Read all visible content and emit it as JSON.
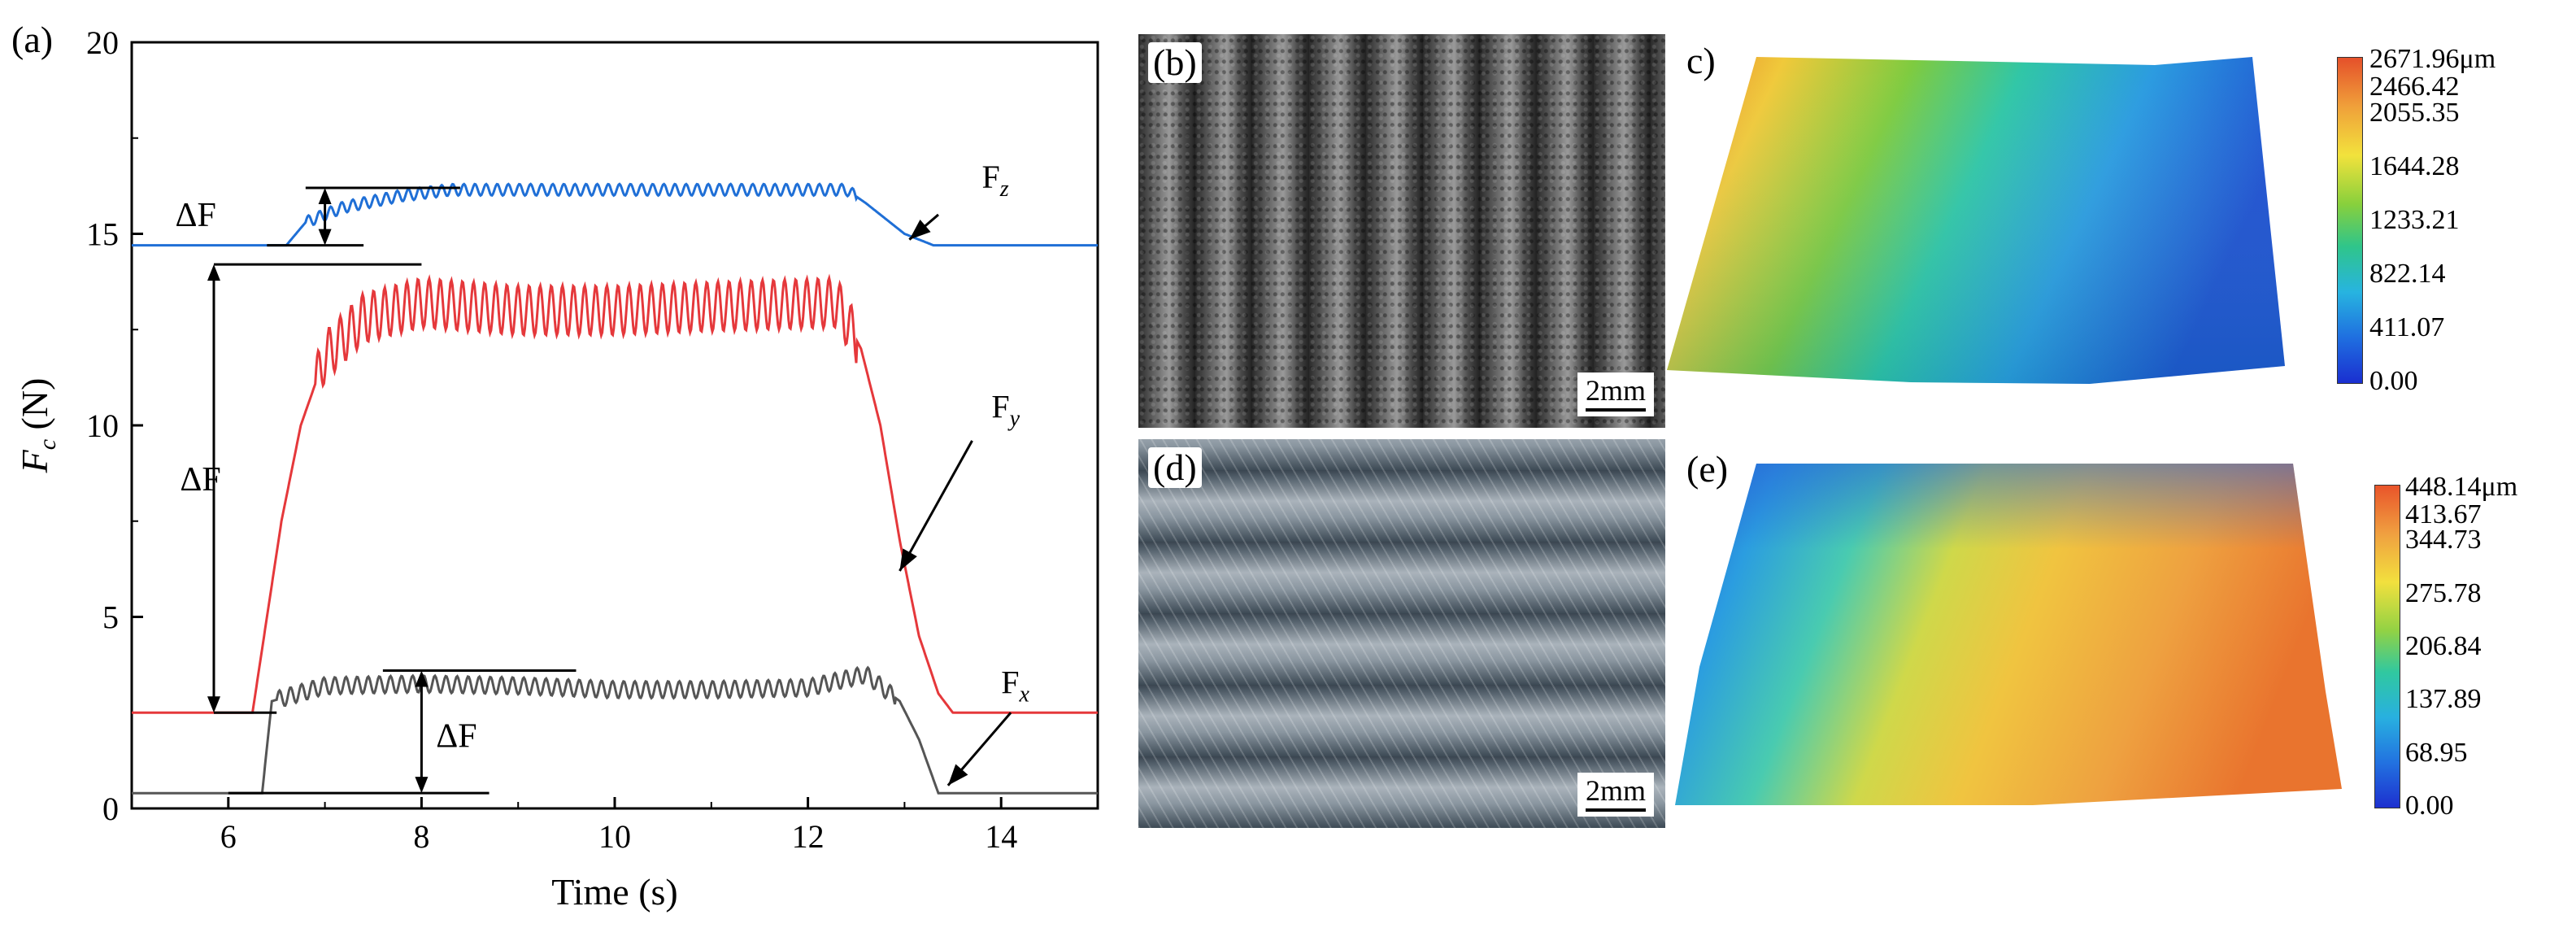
{
  "panel_labels": {
    "a": "(a)",
    "b": "(b)",
    "c": "c)",
    "d": "(d)",
    "e": "(e)"
  },
  "scale_bars": {
    "b": "2mm",
    "d": "2mm"
  },
  "colorbar_c": {
    "ticks": [
      "2671.96μm",
      "2466.42",
      "2055.35",
      "1644.28",
      "1233.21",
      "822.14",
      "411.07",
      "0.00"
    ]
  },
  "colorbar_e": {
    "ticks": [
      "448.14μm",
      "413.67",
      "344.73",
      "275.78",
      "206.84",
      "137.89",
      "68.95",
      "0.00"
    ]
  },
  "chart_data": {
    "type": "line",
    "title": "",
    "xlabel": "Time (s)",
    "ylabel": "F_c (N)",
    "xlim": [
      5,
      15
    ],
    "ylim": [
      0,
      20
    ],
    "xticks": [
      6,
      8,
      10,
      12,
      14
    ],
    "yticks": [
      0,
      5,
      10,
      15,
      20
    ],
    "series": [
      {
        "name": "Fz",
        "label_main": "F",
        "label_sub": "z",
        "color": "#1f6fd6",
        "points": [
          [
            5,
            14.7
          ],
          [
            6.6,
            14.7
          ],
          [
            6.8,
            15.3
          ],
          [
            7.2,
            15.7
          ],
          [
            7.8,
            16.0
          ],
          [
            8.3,
            16.15
          ],
          [
            12.4,
            16.15
          ],
          [
            12.6,
            15.8
          ],
          [
            13.0,
            15.0
          ],
          [
            13.3,
            14.7
          ],
          [
            15,
            14.7
          ]
        ],
        "osc_start": 6.8,
        "osc_end": 12.5,
        "osc_amp": 0.15
      },
      {
        "name": "Fy",
        "label_main": "F",
        "label_sub": "y",
        "color": "#e5383b",
        "points": [
          [
            5,
            2.5
          ],
          [
            6.25,
            2.5
          ],
          [
            6.4,
            5.0
          ],
          [
            6.55,
            7.5
          ],
          [
            6.75,
            10.0
          ],
          [
            7.0,
            11.8
          ],
          [
            7.4,
            12.8
          ],
          [
            8.0,
            13.2
          ],
          [
            9.0,
            13.0
          ],
          [
            10.0,
            13.0
          ],
          [
            11.0,
            13.1
          ],
          [
            12.3,
            13.2
          ],
          [
            12.55,
            12.0
          ],
          [
            12.75,
            10.0
          ],
          [
            12.95,
            7.0
          ],
          [
            13.15,
            4.5
          ],
          [
            13.35,
            3.0
          ],
          [
            13.5,
            2.5
          ],
          [
            15,
            2.5
          ]
        ],
        "osc_start": 6.9,
        "osc_end": 12.5,
        "osc_amp": 0.65
      },
      {
        "name": "Fx",
        "label_main": "F",
        "label_sub": "x",
        "color": "#555555",
        "points": [
          [
            5,
            0.4
          ],
          [
            6.35,
            0.4
          ],
          [
            6.45,
            2.8
          ],
          [
            7.0,
            3.2
          ],
          [
            8.0,
            3.25
          ],
          [
            9.0,
            3.2
          ],
          [
            10.0,
            3.1
          ],
          [
            11.0,
            3.1
          ],
          [
            12.0,
            3.15
          ],
          [
            12.6,
            3.5
          ],
          [
            12.95,
            2.8
          ],
          [
            13.15,
            1.8
          ],
          [
            13.35,
            0.4
          ],
          [
            15,
            0.4
          ]
        ],
        "osc_start": 6.5,
        "osc_end": 12.9,
        "osc_amp": 0.22
      }
    ],
    "annotations": [
      {
        "text": "ΔF",
        "series": "Fz",
        "y_from": 14.7,
        "y_to": 16.2
      },
      {
        "text": "ΔF",
        "series": "Fy",
        "y_from": 2.5,
        "y_to": 14.2
      },
      {
        "text": "ΔF",
        "series": "Fx",
        "y_from": 0.4,
        "y_to": 3.6
      }
    ]
  }
}
